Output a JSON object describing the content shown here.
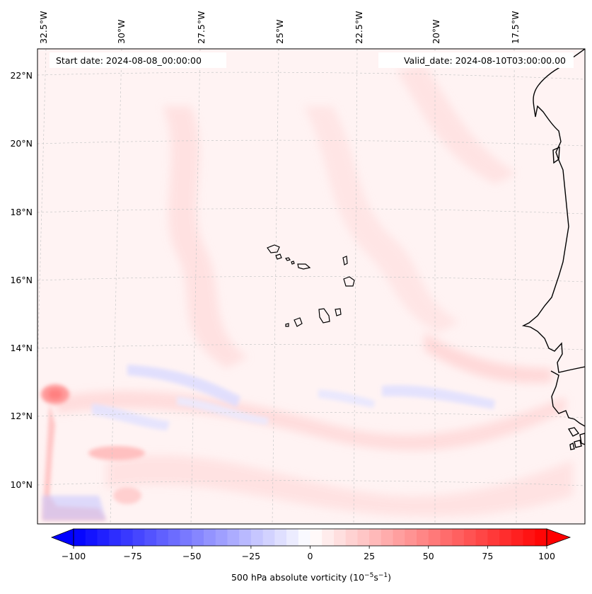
{
  "map": {
    "projection": "Lambert conformal",
    "region": "Eastern tropical North Atlantic, Cape Verde Islands and West African coast",
    "lon_labels": [
      "32.5°W",
      "30°W",
      "27.5°W",
      "25°W",
      "22.5°W",
      "20°W",
      "17.5°W"
    ],
    "lat_labels": [
      "22°N",
      "20°N",
      "18°N",
      "16°N",
      "14°N",
      "12°N",
      "10°N"
    ],
    "start_date_text": "Start date: 2024-08-08_00:00:00",
    "valid_date_text": "Valid_date: 2024-08-10T03:00:00.00"
  },
  "colorbar": {
    "title_prefix": "500 hPa absolute vorticity (10",
    "title_exp1": "−5",
    "title_mid": "s",
    "title_exp2": "−1",
    "title_suffix": ")",
    "min": -100,
    "max": 100,
    "tick_values": [
      -100,
      -75,
      -50,
      -25,
      0,
      25,
      50,
      75,
      100
    ],
    "tick_labels": [
      "−100",
      "−75",
      "−50",
      "−25",
      "0",
      "25",
      "50",
      "75",
      "100"
    ],
    "low_color": "#0000ff",
    "mid_color": "#ffffff",
    "high_color": "#ff0000",
    "levels": 40
  },
  "colors": {
    "background_field": "#fff2f2",
    "coastline": "#000000",
    "gridline": "#c8c8c8"
  }
}
